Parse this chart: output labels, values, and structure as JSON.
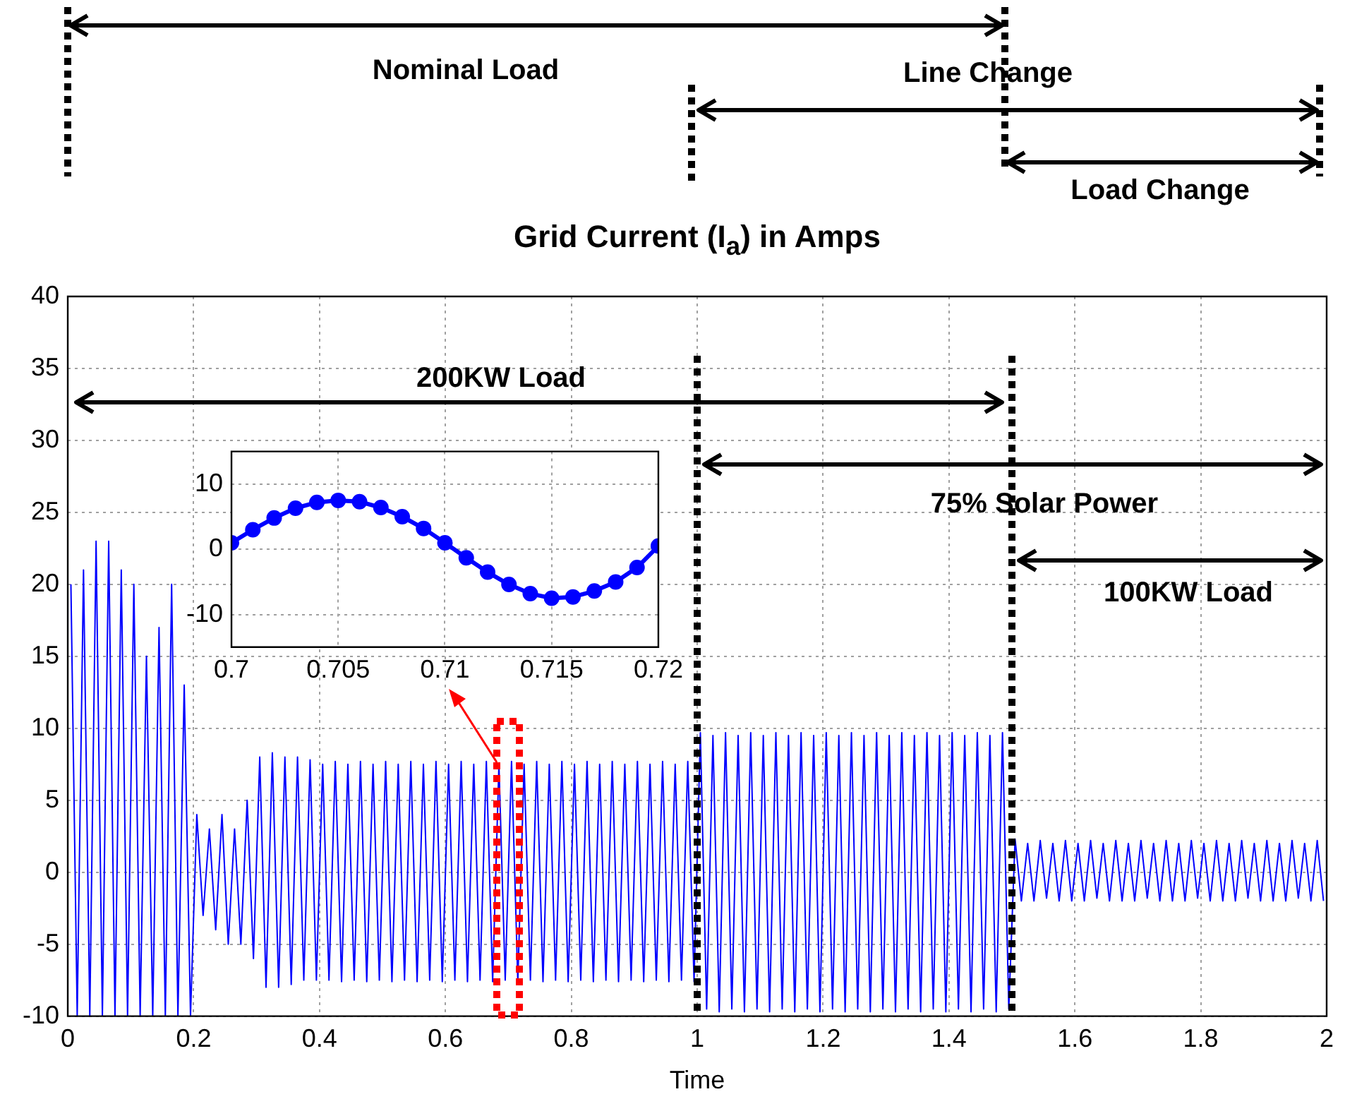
{
  "chart_data": [
    {
      "type": "line",
      "annotations": [
        "Nominal Load",
        "Line Change",
        "Load Change",
        "200KW Load",
        "75% Solar Power",
        "100KW Load"
      ],
      "title": "Grid Current (I$_{a}$) in Amps",
      "xlabel": "Time",
      "color": "#0000ff",
      "marker": "none",
      "grid": true,
      "legend": false,
      "xlim": [
        0,
        2
      ],
      "xticks": [
        0,
        0.2,
        0.4,
        0.6,
        0.8,
        1,
        1.2,
        1.4,
        1.6,
        1.8,
        2
      ],
      "ylim": [
        -10,
        40
      ],
      "yticks": [
        -10,
        -5,
        0,
        5,
        10,
        15,
        20,
        25,
        30,
        35,
        40
      ],
      "x": [
        0.005,
        0.015,
        0.025,
        0.035,
        0.045,
        0.055,
        0.065,
        0.075,
        0.085,
        0.095,
        0.105,
        0.115,
        0.125,
        0.135,
        0.145,
        0.155,
        0.165,
        0.175,
        0.185,
        0.195,
        0.205,
        0.215,
        0.225,
        0.235,
        0.245,
        0.255,
        0.265,
        0.275,
        0.285,
        0.295,
        0.305,
        0.315,
        0.325,
        0.335,
        0.345,
        0.355,
        0.365,
        0.375,
        0.385,
        0.395,
        0.405,
        0.415,
        0.425,
        0.435,
        0.445,
        0.455,
        0.465,
        0.475,
        0.485,
        0.495,
        0.505,
        0.515,
        0.525,
        0.535,
        0.545,
        0.555,
        0.565,
        0.575,
        0.585,
        0.595,
        0.605,
        0.615,
        0.625,
        0.635,
        0.645,
        0.655,
        0.665,
        0.675,
        0.685,
        0.695,
        0.705,
        0.715,
        0.725,
        0.735,
        0.745,
        0.755,
        0.765,
        0.775,
        0.785,
        0.795,
        0.805,
        0.815,
        0.825,
        0.835,
        0.845,
        0.855,
        0.865,
        0.875,
        0.885,
        0.895,
        0.905,
        0.915,
        0.925,
        0.935,
        0.945,
        0.955,
        0.965,
        0.975,
        0.985,
        0.995,
        1.005,
        1.015,
        1.025,
        1.035,
        1.045,
        1.055,
        1.065,
        1.075,
        1.085,
        1.095,
        1.105,
        1.115,
        1.125,
        1.135,
        1.145,
        1.155,
        1.165,
        1.175,
        1.185,
        1.195,
        1.205,
        1.215,
        1.225,
        1.235,
        1.245,
        1.255,
        1.265,
        1.275,
        1.285,
        1.295,
        1.305,
        1.315,
        1.325,
        1.335,
        1.345,
        1.355,
        1.365,
        1.375,
        1.385,
        1.395,
        1.405,
        1.415,
        1.425,
        1.435,
        1.445,
        1.455,
        1.465,
        1.475,
        1.485,
        1.495,
        1.505,
        1.515,
        1.525,
        1.535,
        1.545,
        1.555,
        1.565,
        1.575,
        1.585,
        1.595,
        1.605,
        1.615,
        1.625,
        1.635,
        1.645,
        1.655,
        1.665,
        1.675,
        1.685,
        1.695,
        1.705,
        1.715,
        1.725,
        1.735,
        1.745,
        1.755,
        1.765,
        1.775,
        1.785,
        1.795,
        1.805,
        1.815,
        1.825,
        1.835,
        1.845,
        1.855,
        1.865,
        1.875,
        1.885,
        1.895,
        1.905,
        1.915,
        1.925,
        1.935,
        1.945,
        1.955,
        1.965,
        1.975,
        1.985,
        1.995
      ],
      "values": [
        20,
        -10,
        21,
        -10,
        23,
        -10,
        23,
        -10,
        21,
        -10,
        20,
        -10,
        15,
        -10,
        17,
        -10,
        20,
        -10,
        13,
        -10,
        4,
        -3,
        3,
        -4,
        4,
        -5,
        3,
        -5,
        5,
        -6,
        8,
        -8,
        8.3,
        -8,
        8,
        -7.8,
        8,
        -7.5,
        7.8,
        -7.5,
        7.5,
        -7.5,
        7.7,
        -7.6,
        7.5,
        -7.5,
        7.7,
        -7.6,
        7.5,
        -7.5,
        7.7,
        -7.6,
        7.5,
        -7.5,
        7.7,
        -7.6,
        7.5,
        -7.5,
        7.7,
        -7.6,
        7.5,
        -7.5,
        7.7,
        -7.6,
        7.5,
        -7.5,
        7.7,
        -7.6,
        7.5,
        -7.5,
        7.7,
        -7.6,
        7.5,
        -7.5,
        7.7,
        -7.6,
        7.5,
        -7.5,
        7.7,
        -7.6,
        7.5,
        -7.5,
        7.7,
        -7.6,
        7.5,
        -7.5,
        7.7,
        -7.6,
        7.5,
        -7.5,
        7.7,
        -7.6,
        7.5,
        -7.5,
        7.7,
        -7.6,
        7.5,
        -7.5,
        7.7,
        -7.6,
        9.7,
        -9.5,
        9.5,
        -9.7,
        9.7,
        -9.5,
        9.5,
        -9.7,
        9.7,
        -9.5,
        9.5,
        -9.7,
        9.7,
        -9.5,
        9.5,
        -9.7,
        9.7,
        -9.5,
        9.5,
        -9.7,
        9.7,
        -9.5,
        9.5,
        -9.7,
        9.7,
        -9.5,
        9.5,
        -9.7,
        9.7,
        -9.5,
        9.5,
        -9.7,
        9.7,
        -9.5,
        9.5,
        -9.7,
        9.7,
        -9.5,
        9.5,
        -9.7,
        9.7,
        -9.5,
        9.5,
        -9.7,
        9.7,
        -9.5,
        9.5,
        -9.7,
        9.7,
        -9.5,
        2.3,
        -2,
        2,
        -2,
        2.2,
        -1.8,
        2,
        -2,
        2.2,
        -2,
        2,
        -2,
        2.2,
        -1.8,
        2,
        -2,
        2.2,
        -2,
        2,
        -2,
        2.2,
        -1.8,
        2,
        -2,
        2.2,
        -2,
        2,
        -2,
        2.2,
        -1.8,
        2,
        -2,
        2.2,
        -2,
        2,
        -2,
        2.2,
        -1.8,
        2,
        -2,
        2.2,
        -2,
        2,
        -2,
        2.2,
        -1.8,
        2,
        -2,
        2.2,
        -2
      ],
      "ref_lines": [
        {
          "axis": "x",
          "value": 1,
          "color": "#000000",
          "line_style": "dotted"
        },
        {
          "axis": "x",
          "value": 1.5,
          "color": "#000000",
          "line_style": "dotted"
        }
      ]
    },
    {
      "type": "line",
      "color": "#0000ff",
      "marker": "circle",
      "grid": true,
      "legend": false,
      "xlim": [
        0.7,
        0.72
      ],
      "xticks": [
        0.7,
        0.705,
        0.71,
        0.715,
        0.72
      ],
      "ylim": [
        -15,
        15
      ],
      "yticks": [
        -10,
        0,
        10
      ],
      "x": [
        0.7,
        0.701,
        0.702,
        0.703,
        0.704,
        0.705,
        0.706,
        0.707,
        0.708,
        0.709,
        0.71,
        0.711,
        0.712,
        0.713,
        0.714,
        0.715,
        0.716,
        0.717,
        0.718,
        0.719,
        0.72
      ],
      "values": [
        1,
        3,
        4.8,
        6.3,
        7.2,
        7.5,
        7.3,
        6.4,
        5,
        3.2,
        1,
        -1.3,
        -3.5,
        -5.4,
        -6.8,
        -7.5,
        -7.3,
        -6.4,
        -5,
        -2.8,
        0.5
      ]
    }
  ]
}
